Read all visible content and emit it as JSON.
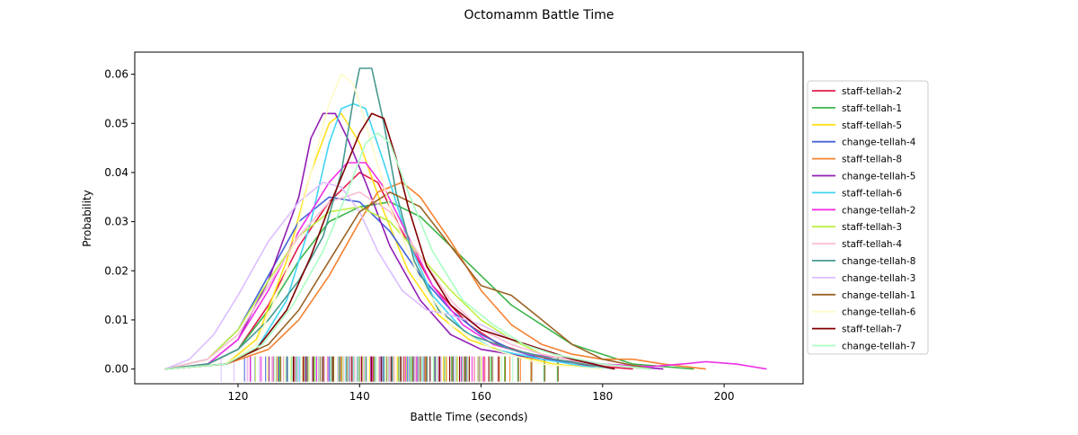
{
  "chart_data": {
    "type": "line",
    "title": "Octomamm Battle Time",
    "xlabel": "Battle Time (seconds)",
    "ylabel": "Probability",
    "xlim": [
      103,
      213
    ],
    "ylim": [
      -0.003,
      0.0645
    ],
    "xticks": [
      120,
      140,
      160,
      180,
      200
    ],
    "yticks": [
      0.0,
      0.01,
      0.02,
      0.03,
      0.04,
      0.05,
      0.06
    ],
    "ytick_labels": [
      "0.00",
      "0.01",
      "0.02",
      "0.03",
      "0.04",
      "0.05",
      "0.06"
    ],
    "legend_position": "center-right-outside",
    "grid": false,
    "series": [
      {
        "name": "staff-tellah-2",
        "color": "#e6194b",
        "points": [
          [
            108,
            0
          ],
          [
            115,
            0.001
          ],
          [
            120,
            0.004
          ],
          [
            125,
            0.013
          ],
          [
            130,
            0.025
          ],
          [
            135,
            0.034
          ],
          [
            140,
            0.04
          ],
          [
            143,
            0.038
          ],
          [
            147,
            0.028
          ],
          [
            152,
            0.017
          ],
          [
            158,
            0.009
          ],
          [
            163,
            0.005
          ],
          [
            168,
            0.003
          ],
          [
            175,
            0.001
          ],
          [
            185,
            0
          ]
        ]
      },
      {
        "name": "staff-tellah-1",
        "color": "#3cb44b",
        "points": [
          [
            108,
            0
          ],
          [
            115,
            0.001
          ],
          [
            120,
            0.004
          ],
          [
            125,
            0.012
          ],
          [
            130,
            0.022
          ],
          [
            135,
            0.03
          ],
          [
            140,
            0.033
          ],
          [
            145,
            0.034
          ],
          [
            150,
            0.031
          ],
          [
            155,
            0.025
          ],
          [
            160,
            0.019
          ],
          [
            165,
            0.013
          ],
          [
            170,
            0.009
          ],
          [
            175,
            0.005
          ],
          [
            180,
            0.003
          ],
          [
            185,
            0.001
          ],
          [
            195,
            0
          ]
        ]
      },
      {
        "name": "staff-tellah-5",
        "color": "#ffe119",
        "points": [
          [
            108,
            0
          ],
          [
            118,
            0.001
          ],
          [
            123,
            0.006
          ],
          [
            128,
            0.022
          ],
          [
            132,
            0.04
          ],
          [
            135,
            0.05
          ],
          [
            137,
            0.052
          ],
          [
            140,
            0.046
          ],
          [
            144,
            0.032
          ],
          [
            148,
            0.02
          ],
          [
            153,
            0.011
          ],
          [
            158,
            0.006
          ],
          [
            165,
            0.003
          ],
          [
            172,
            0.001
          ],
          [
            180,
            0
          ]
        ]
      },
      {
        "name": "change-tellah-4",
        "color": "#4363d8",
        "points": [
          [
            108,
            0
          ],
          [
            115,
            0.002
          ],
          [
            120,
            0.008
          ],
          [
            125,
            0.019
          ],
          [
            130,
            0.03
          ],
          [
            135,
            0.035
          ],
          [
            140,
            0.034
          ],
          [
            145,
            0.028
          ],
          [
            150,
            0.019
          ],
          [
            155,
            0.012
          ],
          [
            160,
            0.007
          ],
          [
            165,
            0.004
          ],
          [
            170,
            0.002
          ],
          [
            178,
            0.001
          ],
          [
            188,
            0
          ]
        ]
      },
      {
        "name": "staff-tellah-8",
        "color": "#f58231",
        "points": [
          [
            108,
            0
          ],
          [
            118,
            0.001
          ],
          [
            125,
            0.004
          ],
          [
            130,
            0.01
          ],
          [
            135,
            0.019
          ],
          [
            140,
            0.03
          ],
          [
            143,
            0.036
          ],
          [
            147,
            0.038
          ],
          [
            150,
            0.035
          ],
          [
            155,
            0.026
          ],
          [
            160,
            0.016
          ],
          [
            165,
            0.009
          ],
          [
            170,
            0.005
          ],
          [
            175,
            0.003
          ],
          [
            180,
            0.002
          ],
          [
            185,
            0.002
          ],
          [
            190,
            0.001
          ],
          [
            197,
            0
          ]
        ]
      },
      {
        "name": "change-tellah-5",
        "color": "#911eb4",
        "points": [
          [
            108,
            0
          ],
          [
            115,
            0.001
          ],
          [
            120,
            0.006
          ],
          [
            125,
            0.018
          ],
          [
            130,
            0.035
          ],
          [
            132,
            0.047
          ],
          [
            134,
            0.052
          ],
          [
            136,
            0.052
          ],
          [
            138,
            0.047
          ],
          [
            141,
            0.038
          ],
          [
            145,
            0.025
          ],
          [
            150,
            0.014
          ],
          [
            155,
            0.007
          ],
          [
            160,
            0.004
          ],
          [
            165,
            0.003
          ],
          [
            170,
            0.002
          ],
          [
            180,
            0.001
          ],
          [
            190,
            0
          ]
        ]
      },
      {
        "name": "staff-tellah-6",
        "color": "#42d4f4",
        "points": [
          [
            108,
            0
          ],
          [
            118,
            0.001
          ],
          [
            123,
            0.004
          ],
          [
            128,
            0.014
          ],
          [
            132,
            0.03
          ],
          [
            135,
            0.046
          ],
          [
            137,
            0.053
          ],
          [
            139,
            0.054
          ],
          [
            141,
            0.053
          ],
          [
            144,
            0.042
          ],
          [
            148,
            0.026
          ],
          [
            152,
            0.015
          ],
          [
            157,
            0.008
          ],
          [
            162,
            0.004
          ],
          [
            170,
            0.002
          ],
          [
            180,
            0
          ]
        ]
      },
      {
        "name": "change-tellah-2",
        "color": "#f032e6",
        "points": [
          [
            108,
            0
          ],
          [
            115,
            0.001
          ],
          [
            120,
            0.006
          ],
          [
            125,
            0.016
          ],
          [
            130,
            0.028
          ],
          [
            135,
            0.038
          ],
          [
            138,
            0.042
          ],
          [
            141,
            0.042
          ],
          [
            144,
            0.037
          ],
          [
            148,
            0.027
          ],
          [
            152,
            0.017
          ],
          [
            157,
            0.009
          ],
          [
            162,
            0.005
          ],
          [
            168,
            0.003
          ],
          [
            175,
            0.002
          ],
          [
            180,
            0.001
          ],
          [
            188,
            0.0005
          ],
          [
            193,
            0.001
          ],
          [
            197,
            0.0015
          ],
          [
            202,
            0.001
          ],
          [
            207,
            0
          ]
        ]
      },
      {
        "name": "staff-tellah-3",
        "color": "#bfef45",
        "points": [
          [
            108,
            0
          ],
          [
            115,
            0.002
          ],
          [
            120,
            0.008
          ],
          [
            125,
            0.018
          ],
          [
            130,
            0.027
          ],
          [
            135,
            0.032
          ],
          [
            140,
            0.033
          ],
          [
            145,
            0.03
          ],
          [
            150,
            0.023
          ],
          [
            155,
            0.016
          ],
          [
            160,
            0.01
          ],
          [
            165,
            0.006
          ],
          [
            170,
            0.003
          ],
          [
            178,
            0.001
          ],
          [
            188,
            0
          ]
        ]
      },
      {
        "name": "staff-tellah-4",
        "color": "#fabed4",
        "points": [
          [
            108,
            0
          ],
          [
            115,
            0.002
          ],
          [
            120,
            0.007
          ],
          [
            125,
            0.017
          ],
          [
            130,
            0.027
          ],
          [
            135,
            0.034
          ],
          [
            140,
            0.036
          ],
          [
            145,
            0.032
          ],
          [
            150,
            0.023
          ],
          [
            155,
            0.014
          ],
          [
            160,
            0.008
          ],
          [
            165,
            0.005
          ],
          [
            170,
            0.003
          ],
          [
            178,
            0.001
          ],
          [
            188,
            0
          ]
        ]
      },
      {
        "name": "change-tellah-8",
        "color": "#469990",
        "points": [
          [
            108,
            0
          ],
          [
            115,
            0.001
          ],
          [
            120,
            0.004
          ],
          [
            125,
            0.01
          ],
          [
            130,
            0.018
          ],
          [
            134,
            0.027
          ],
          [
            137,
            0.04
          ],
          [
            139,
            0.055
          ],
          [
            140,
            0.0612
          ],
          [
            142,
            0.0612
          ],
          [
            144,
            0.05
          ],
          [
            146,
            0.036
          ],
          [
            149,
            0.022
          ],
          [
            153,
            0.012
          ],
          [
            158,
            0.007
          ],
          [
            165,
            0.004
          ],
          [
            172,
            0.002
          ],
          [
            182,
            0
          ]
        ]
      },
      {
        "name": "change-tellah-3",
        "color": "#dcbeff",
        "points": [
          [
            108,
            0
          ],
          [
            112,
            0.002
          ],
          [
            116,
            0.007
          ],
          [
            120,
            0.015
          ],
          [
            125,
            0.026
          ],
          [
            130,
            0.034
          ],
          [
            134,
            0.038
          ],
          [
            137,
            0.037
          ],
          [
            140,
            0.032
          ],
          [
            143,
            0.024
          ],
          [
            147,
            0.016
          ],
          [
            151,
            0.012
          ],
          [
            155,
            0.011
          ],
          [
            160,
            0.009
          ],
          [
            165,
            0.006
          ],
          [
            170,
            0.004
          ],
          [
            175,
            0.002
          ],
          [
            182,
            0
          ]
        ]
      },
      {
        "name": "change-tellah-1",
        "color": "#9a6324",
        "points": [
          [
            108,
            0
          ],
          [
            118,
            0.001
          ],
          [
            125,
            0.005
          ],
          [
            130,
            0.012
          ],
          [
            135,
            0.022
          ],
          [
            140,
            0.032
          ],
          [
            145,
            0.036
          ],
          [
            150,
            0.033
          ],
          [
            155,
            0.025
          ],
          [
            160,
            0.017
          ],
          [
            165,
            0.015
          ],
          [
            170,
            0.01
          ],
          [
            175,
            0.005
          ],
          [
            180,
            0.002
          ],
          [
            188,
            0
          ]
        ]
      },
      {
        "name": "change-tellah-6",
        "color": "#fffac8",
        "points": [
          [
            108,
            0
          ],
          [
            118,
            0.001
          ],
          [
            123,
            0.005
          ],
          [
            128,
            0.02
          ],
          [
            132,
            0.04
          ],
          [
            135,
            0.054
          ],
          [
            137,
            0.06
          ],
          [
            139,
            0.058
          ],
          [
            141,
            0.05
          ],
          [
            145,
            0.033
          ],
          [
            150,
            0.018
          ],
          [
            155,
            0.009
          ],
          [
            162,
            0.004
          ],
          [
            170,
            0.001
          ],
          [
            180,
            0
          ]
        ]
      },
      {
        "name": "staff-tellah-7",
        "color": "#800000",
        "points": [
          [
            108,
            0
          ],
          [
            118,
            0.001
          ],
          [
            123,
            0.004
          ],
          [
            128,
            0.012
          ],
          [
            132,
            0.023
          ],
          [
            135,
            0.033
          ],
          [
            138,
            0.042
          ],
          [
            140,
            0.048
          ],
          [
            142,
            0.052
          ],
          [
            144,
            0.051
          ],
          [
            146,
            0.043
          ],
          [
            148,
            0.033
          ],
          [
            151,
            0.021
          ],
          [
            155,
            0.013
          ],
          [
            160,
            0.008
          ],
          [
            165,
            0.006
          ],
          [
            170,
            0.004
          ],
          [
            175,
            0.002
          ],
          [
            182,
            0
          ]
        ]
      },
      {
        "name": "change-tellah-7",
        "color": "#aaffc3",
        "points": [
          [
            108,
            0
          ],
          [
            118,
            0.001
          ],
          [
            124,
            0.005
          ],
          [
            129,
            0.013
          ],
          [
            134,
            0.024
          ],
          [
            138,
            0.036
          ],
          [
            141,
            0.046
          ],
          [
            143,
            0.048
          ],
          [
            145,
            0.046
          ],
          [
            148,
            0.036
          ],
          [
            152,
            0.024
          ],
          [
            157,
            0.014
          ],
          [
            162,
            0.009
          ],
          [
            167,
            0.005
          ],
          [
            172,
            0.003
          ],
          [
            180,
            0.001
          ],
          [
            188,
            0
          ]
        ]
      }
    ]
  }
}
